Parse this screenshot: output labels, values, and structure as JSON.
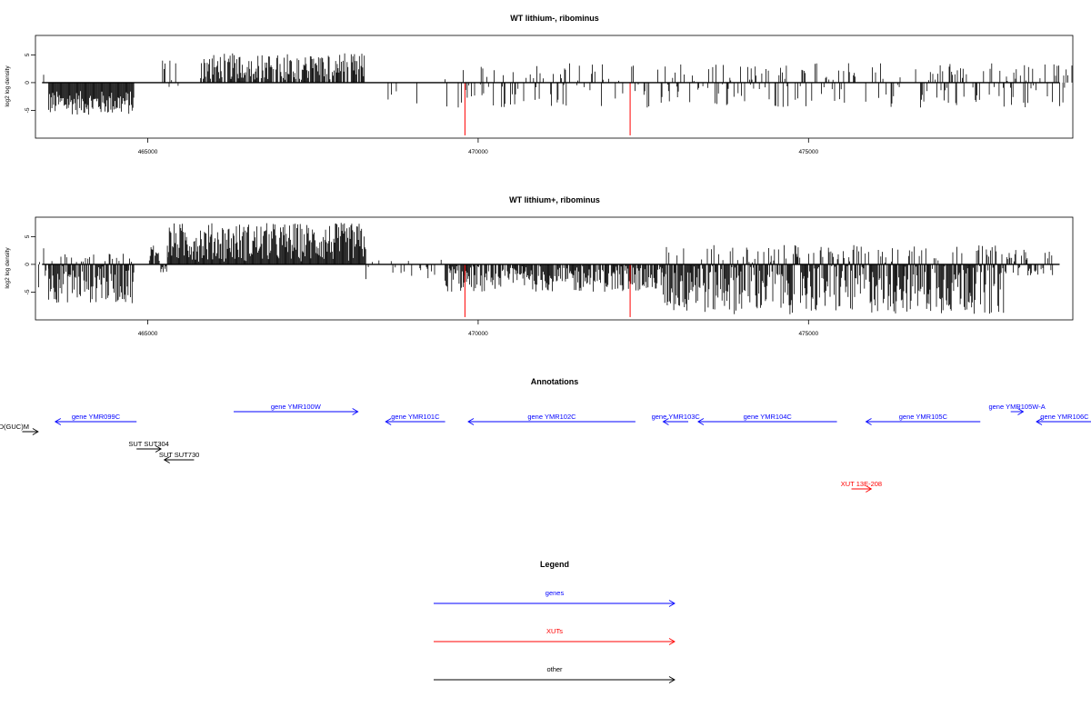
{
  "colors": {
    "gene": "#0000ff",
    "xut": "#ff0000",
    "other": "#000000",
    "axis": "#000000",
    "peak": "#ff0000"
  },
  "chart_data": [
    {
      "type": "bar",
      "title": "WT lithium-, ribominus",
      "ylabel": "log2 log density",
      "xlim": [
        463300,
        479000
      ],
      "ylim": [
        -10,
        8.5
      ],
      "xticks": [
        465000,
        470000,
        475000
      ],
      "xtick_labels": [
        "465000",
        "470000",
        "475000"
      ],
      "yticks": [
        5,
        0,
        -5
      ],
      "ytick_labels": [
        "5",
        "0",
        "-5"
      ],
      "grid": false,
      "highlighted_x": [
        469800,
        472300
      ],
      "highlighted_values": [
        -9.5,
        -9.5
      ],
      "signal_regions": [
        {
          "start": 463350,
          "end": 463500,
          "low": -3,
          "high": 2,
          "density": 0.2
        },
        {
          "start": 463500,
          "end": 464800,
          "low": -5.8,
          "high": -1.5,
          "density": 1.0
        },
        {
          "start": 465100,
          "end": 465500,
          "low": -1.5,
          "high": 4.5,
          "density": 0.3
        },
        {
          "start": 465800,
          "end": 468300,
          "low": 0.5,
          "high": 5.3,
          "density": 0.8
        },
        {
          "start": 468600,
          "end": 469200,
          "low": -4,
          "high": -0.5,
          "density": 0.1
        },
        {
          "start": 469500,
          "end": 479000,
          "low": -4.5,
          "high": 3.5,
          "density": 0.35
        }
      ]
    },
    {
      "type": "bar",
      "title": "WT lithium+, ribominus",
      "ylabel": "log2 log density",
      "xlim": [
        463300,
        479000
      ],
      "ylim": [
        -10,
        8.5
      ],
      "xticks": [
        465000,
        470000,
        475000
      ],
      "xtick_labels": [
        "465000",
        "470000",
        "475000"
      ],
      "yticks": [
        5,
        0,
        -5
      ],
      "ytick_labels": [
        "5",
        "0",
        "-5"
      ],
      "grid": false,
      "highlighted_x": [
        469800,
        472300
      ],
      "highlighted_values": [
        -9.5,
        -9.5
      ],
      "signal_regions": [
        {
          "start": 463350,
          "end": 463500,
          "low": -5,
          "high": 3,
          "density": 0.5
        },
        {
          "start": 463500,
          "end": 464800,
          "low": -7,
          "high": 2,
          "density": 1.0
        },
        {
          "start": 465000,
          "end": 465300,
          "low": -2,
          "high": 4.5,
          "density": 0.8
        },
        {
          "start": 465300,
          "end": 468300,
          "low": 0.5,
          "high": 7.5,
          "density": 1.0
        },
        {
          "start": 468300,
          "end": 469500,
          "low": -3,
          "high": 1,
          "density": 0.3
        },
        {
          "start": 469500,
          "end": 472800,
          "low": -5,
          "high": 0,
          "density": 0.9
        },
        {
          "start": 472800,
          "end": 478000,
          "low": -9,
          "high": 3.5,
          "density": 1.0
        },
        {
          "start": 478000,
          "end": 478700,
          "low": -2,
          "high": 3,
          "density": 0.7
        }
      ]
    }
  ],
  "annotations": {
    "title": "Annotations",
    "items": [
      {
        "label": "tRNA tD(GUC)M",
        "kind": "other",
        "start": 463100,
        "end": 463340,
        "dir": 1,
        "row": 3
      },
      {
        "label": "gene YMR099C",
        "kind": "gene",
        "start": 463600,
        "end": 464830,
        "dir": -1,
        "row": 2
      },
      {
        "label": "gene YMR100W",
        "kind": "gene",
        "start": 466300,
        "end": 468180,
        "dir": 1,
        "row": 1
      },
      {
        "label": "gene YMR101C",
        "kind": "gene",
        "start": 468600,
        "end": 469500,
        "dir": -1,
        "row": 2
      },
      {
        "label": "gene YMR102C",
        "kind": "gene",
        "start": 469850,
        "end": 472380,
        "dir": -1,
        "row": 2
      },
      {
        "label": "gene YMR103C",
        "kind": "gene",
        "start": 472800,
        "end": 473180,
        "dir": -1,
        "row": 2
      },
      {
        "label": "gene YMR104C",
        "kind": "gene",
        "start": 473330,
        "end": 475430,
        "dir": -1,
        "row": 2
      },
      {
        "label": "gene YMR105C",
        "kind": "gene",
        "start": 475870,
        "end": 477600,
        "dir": -1,
        "row": 2
      },
      {
        "label": "gene YMR105W-A",
        "kind": "gene",
        "start": 478060,
        "end": 478250,
        "dir": 1,
        "row": 1
      },
      {
        "label": "gene YMR106C",
        "kind": "gene",
        "start": 478450,
        "end": 479300,
        "dir": -1,
        "row": 2
      },
      {
        "label": "SUT SUT304",
        "kind": "other",
        "start": 464830,
        "end": 465200,
        "dir": 1,
        "row": 4
      },
      {
        "label": "SUT SUT730",
        "kind": "other",
        "start": 465250,
        "end": 465700,
        "dir": -1,
        "row": 5
      },
      {
        "label": "XUT 13E-208",
        "kind": "xut",
        "start": 475650,
        "end": 475950,
        "dir": 1,
        "row": 7
      }
    ]
  },
  "legend": {
    "title": "Legend",
    "entries": [
      {
        "label": "genes",
        "kind": "gene"
      },
      {
        "label": "XUTs",
        "kind": "xut"
      },
      {
        "label": "other",
        "kind": "other"
      }
    ]
  }
}
